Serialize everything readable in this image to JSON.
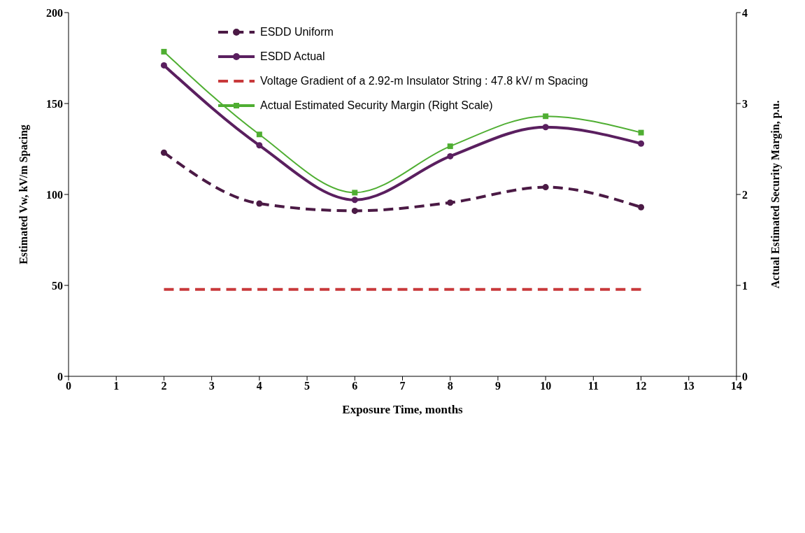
{
  "chart_data": {
    "type": "line",
    "xlabel": "Exposure Time, months",
    "ylabel": "Estimated Vw, kV/m Spacing",
    "y2label": "Actual Estimated Security Margin, p.u.",
    "x": [
      2,
      4,
      6,
      8,
      10,
      12
    ],
    "series": [
      {
        "name": "ESDD Uniform",
        "color": "#4b1a45",
        "values": [
          123,
          95,
          91,
          95.5,
          104,
          93
        ],
        "line_style": "dashed",
        "marker": "circle"
      },
      {
        "name": "ESDD Actual",
        "color": "#5a1f5f",
        "values": [
          171,
          127,
          97,
          121,
          137,
          128
        ],
        "line_style": "solid",
        "marker": "circle"
      },
      {
        "name": "Voltage Gradient of a 2.92-m Insulator String : 47.8 kV/ m Spacing",
        "color": "#c8393b",
        "values": [
          47.8,
          47.8,
          47.8,
          47.8,
          47.8,
          47.8
        ],
        "line_style": "dashed",
        "marker": "none"
      },
      {
        "name": "Actual Estimated Security Margin (Right Scale)",
        "color": "#4fae32",
        "values": [
          3.57,
          2.66,
          2.02,
          2.53,
          2.86,
          2.68
        ],
        "line_style": "solid",
        "marker": "square",
        "axis": "y2"
      }
    ],
    "xlim": [
      0,
      14
    ],
    "xticks": [
      0,
      1,
      2,
      3,
      4,
      5,
      6,
      7,
      8,
      9,
      10,
      11,
      12,
      13,
      14
    ],
    "ylim": [
      0,
      200
    ],
    "yticks": [
      0,
      50,
      100,
      150,
      200
    ],
    "y2lim": [
      0,
      4
    ],
    "y2ticks": [
      0,
      1,
      2,
      3,
      4
    ],
    "grid": false,
    "legend": "top"
  }
}
